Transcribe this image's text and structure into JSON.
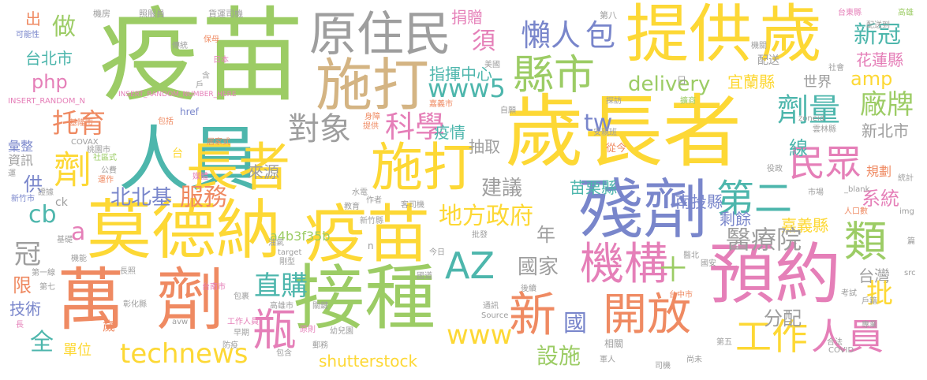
{
  "words": [
    {
      "text": "疫苗",
      "color": "#9ccc65"
    },
    {
      "text": "歲長者",
      "color": "#fdd835"
    },
    {
      "text": "人員",
      "color": "#4db6ac"
    },
    {
      "text": "提供",
      "color": "#fdd835"
    },
    {
      "text": "歲",
      "color": "#fdd835"
    },
    {
      "text": "原住民",
      "color": "#9e9e9e"
    },
    {
      "text": "施打",
      "color": "#d4b483"
    },
    {
      "text": "莫德納",
      "color": "#fdd835"
    },
    {
      "text": "疫苗",
      "color": "#fdd835"
    },
    {
      "text": "萬",
      "color": "#ef8a62"
    },
    {
      "text": "劑",
      "color": "#ef8a62"
    },
    {
      "text": "接種",
      "color": "#9ccc65"
    },
    {
      "text": "殘劑",
      "color": "#7986cb"
    },
    {
      "text": "預約",
      "color": "#e57fb8"
    },
    {
      "text": "長者",
      "color": "#fdd835"
    },
    {
      "text": "施打",
      "color": "#fdd835"
    },
    {
      "text": "AZ",
      "color": "#4db6ac"
    },
    {
      "text": "縣市",
      "color": "#9ccc65"
    },
    {
      "text": "懶人",
      "color": "#7986cb"
    },
    {
      "text": "包",
      "color": "#7986cb"
    },
    {
      "text": "機構",
      "color": "#e57fb8"
    },
    {
      "text": "開放",
      "color": "#ef8a62"
    },
    {
      "text": "新",
      "color": "#ef8a62"
    },
    {
      "text": "瓶",
      "color": "#e57fb8"
    },
    {
      "text": "第二",
      "color": "#4db6ac"
    },
    {
      "text": "類",
      "color": "#9ccc65"
    },
    {
      "text": "民眾",
      "color": "#e57fb8"
    },
    {
      "text": "劑量",
      "color": "#4db6ac"
    },
    {
      "text": "工作",
      "color": "#fdd835"
    },
    {
      "text": "人員",
      "color": "#e57fb8"
    },
    {
      "text": "technews",
      "color": "#fdd835"
    },
    {
      "text": "www",
      "color": "#fdd835"
    },
    {
      "text": "設施",
      "color": "#9ccc65"
    },
    {
      "text": "shutterstock",
      "color": "#fdd835"
    },
    {
      "text": "地方政府",
      "color": "#fdd835"
    },
    {
      "text": "直購",
      "color": "#4db6ac"
    },
    {
      "text": "托育",
      "color": "#ef8a62"
    },
    {
      "text": "劑",
      "color": "#fdd835"
    },
    {
      "text": "對象",
      "color": "#9e9e9e"
    },
    {
      "text": "科學",
      "color": "#e57fb8"
    },
    {
      "text": "www5",
      "color": "#4db6ac"
    },
    {
      "text": "delivery",
      "color": "#9ccc65"
    },
    {
      "text": "新冠",
      "color": "#4db6ac"
    },
    {
      "text": "花蓮縣",
      "color": "#e57fb8"
    },
    {
      "text": "amp",
      "color": "#fdd835"
    },
    {
      "text": "廠牌",
      "color": "#9ccc65"
    },
    {
      "text": "宜蘭縣",
      "color": "#fdd835"
    },
    {
      "text": "世界",
      "color": "#9e9e9e"
    },
    {
      "text": "新北市",
      "color": "#9e9e9e"
    },
    {
      "text": "系統",
      "color": "#e57fb8"
    },
    {
      "text": "嘉義縣",
      "color": "#fdd835"
    },
    {
      "text": "醫療院",
      "color": "#9e9e9e"
    },
    {
      "text": "剩餘",
      "color": "#7986cb"
    },
    {
      "text": "十",
      "color": "#9ccc65"
    },
    {
      "text": "國家",
      "color": "#9e9e9e"
    },
    {
      "text": "台灣",
      "color": "#9e9e9e"
    },
    {
      "text": "批",
      "color": "#fdd835"
    },
    {
      "text": "分配",
      "color": "#9e9e9e"
    },
    {
      "text": "國",
      "color": "#7986cb"
    },
    {
      "text": "北北基",
      "color": "#7986cb"
    },
    {
      "text": "服務",
      "color": "#ef8a62"
    },
    {
      "text": "建議",
      "color": "#9e9e9e"
    },
    {
      "text": "苗栗縣",
      "color": "#4db6ac"
    },
    {
      "text": "南投縣",
      "color": "#7986cb"
    },
    {
      "text": "線",
      "color": "#4db6ac"
    },
    {
      "text": "來源",
      "color": "#9e9e9e"
    },
    {
      "text": "疫情",
      "color": "#4db6ac"
    },
    {
      "text": "抽取",
      "color": "#9e9e9e"
    },
    {
      "text": "指揮中心",
      "color": "#4db6ac"
    },
    {
      "text": "須",
      "color": "#e57fb8"
    },
    {
      "text": "捐贈",
      "color": "#e57fb8"
    },
    {
      "text": "tw",
      "color": "#7986cb"
    },
    {
      "text": "年",
      "color": "#9e9e9e"
    },
    {
      "text": "a4b3f35b",
      "color": "#9ccc65"
    },
    {
      "text": "做",
      "color": "#9ccc65"
    },
    {
      "text": "出",
      "color": "#ef8a62"
    },
    {
      "text": "台北市",
      "color": "#4db6ac"
    },
    {
      "text": "php",
      "color": "#e57fb8"
    },
    {
      "text": "冠",
      "color": "#9e9e9e"
    },
    {
      "text": "a",
      "color": "#e57fb8"
    },
    {
      "text": "cb",
      "color": "#4db6ac"
    },
    {
      "text": "限",
      "color": "#ef8a62"
    },
    {
      "text": "技術",
      "color": "#7986cb"
    },
    {
      "text": "全",
      "color": "#4db6ac"
    },
    {
      "text": "單位",
      "color": "#fdd835"
    },
    {
      "text": "供",
      "color": "#7986cb"
    },
    {
      "text": "資訊",
      "color": "#9e9e9e"
    },
    {
      "text": "彙整",
      "color": "#7986cb"
    },
    {
      "text": "歲",
      "color": "#ef8a62"
    },
    {
      "text": "規劃",
      "color": "#ef8a62"
    },
    {
      "text": "配送",
      "color": "#9e9e9e"
    },
    {
      "text": "機房",
      "color": "#9e9e9e"
    },
    {
      "text": "照服員",
      "color": "#9e9e9e"
    },
    {
      "text": "貨運司機",
      "color": "#9e9e9e"
    },
    {
      "text": "第八",
      "color": "#9e9e9e"
    },
    {
      "text": "台東縣",
      "color": "#e57fb8"
    },
    {
      "text": "高雄",
      "color": "#9ccc65"
    },
    {
      "text": "配送到",
      "color": "#9e9e9e"
    },
    {
      "text": "可能性",
      "color": "#7986cb"
    },
    {
      "text": "傳統",
      "color": "#9e9e9e"
    },
    {
      "text": "保母",
      "color": "#ef8a62"
    },
    {
      "text": "日本",
      "color": "#e57fb8"
    },
    {
      "text": "美國",
      "color": "#9e9e9e"
    },
    {
      "text": "機關",
      "color": "#9e9e9e"
    },
    {
      "text": "社會",
      "color": "#9e9e9e"
    },
    {
      "text": "INSERT_RANDOM_N",
      "color": "#e57fb8"
    },
    {
      "text": "INSERT_RANDOM_NUMBER_HERE",
      "color": "#e57fb8"
    },
    {
      "text": "href",
      "color": "#7986cb"
    },
    {
      "text": "嘉義市",
      "color": "#ef8a62"
    },
    {
      "text": "自願",
      "color": "#9e9e9e"
    },
    {
      "text": "探訪",
      "color": "#9e9e9e"
    },
    {
      "text": "擴商",
      "color": "#9ccc65"
    },
    {
      "text": "安親班",
      "color": "#9e9e9e"
    },
    {
      "text": "從今",
      "color": "#ef8a62"
    },
    {
      "text": "zoneid",
      "color": "#9e9e9e"
    },
    {
      "text": "雲林縣",
      "color": "#9e9e9e"
    },
    {
      "text": "役政",
      "color": "#9e9e9e"
    },
    {
      "text": "統計",
      "color": "#9e9e9e"
    },
    {
      "text": "市場",
      "color": "#9e9e9e"
    },
    {
      "text": "_blank",
      "color": "#9e9e9e"
    },
    {
      "text": "人口數",
      "color": "#ef8a62"
    },
    {
      "text": "基隆市",
      "color": "#ef8a62"
    },
    {
      "text": "包括",
      "color": "#ef8a62"
    },
    {
      "text": "居家式",
      "color": "#ef8a62"
    },
    {
      "text": "提供",
      "color": "#ef8a62"
    },
    {
      "text": "身障",
      "color": "#ef8a62"
    },
    {
      "text": "COVAX",
      "color": "#9e9e9e"
    },
    {
      "text": "桃園市",
      "color": "#9e9e9e"
    },
    {
      "text": "社區式",
      "color": "#9ccc65"
    },
    {
      "text": "台",
      "color": "#fdd835"
    },
    {
      "text": "公費",
      "color": "#9e9e9e"
    },
    {
      "text": "媒體",
      "color": "#e57fb8"
    },
    {
      "text": "運作",
      "color": "#ef8a62"
    },
    {
      "text": "新竹市",
      "color": "#7986cb"
    },
    {
      "text": "證據",
      "color": "#9e9e9e"
    },
    {
      "text": "ck",
      "color": "#9e9e9e"
    },
    {
      "text": "水電",
      "color": "#9e9e9e"
    },
    {
      "text": "教育",
      "color": "#9e9e9e"
    },
    {
      "text": "作者",
      "color": "#9e9e9e"
    },
    {
      "text": "客司機",
      "color": "#9e9e9e"
    },
    {
      "text": "新竹縣",
      "color": "#9e9e9e"
    },
    {
      "text": "基礎",
      "color": "#9e9e9e"
    },
    {
      "text": "機能",
      "color": "#9e9e9e"
    },
    {
      "text": "油氣",
      "color": "#9e9e9e"
    },
    {
      "text": "target",
      "color": "#9e9e9e"
    },
    {
      "text": "剛型",
      "color": "#9e9e9e"
    },
    {
      "text": "批發",
      "color": "#9e9e9e"
    },
    {
      "text": "今日",
      "color": "#9e9e9e"
    },
    {
      "text": "第一線",
      "color": "#9e9e9e"
    },
    {
      "text": "第七",
      "color": "#9e9e9e"
    },
    {
      "text": "長照",
      "color": "#9e9e9e"
    },
    {
      "text": "台南市",
      "color": "#e57fb8"
    },
    {
      "text": "國道",
      "color": "#9e9e9e"
    },
    {
      "text": "後續",
      "color": "#9e9e9e"
    },
    {
      "text": "醫北",
      "color": "#9e9e9e"
    },
    {
      "text": "國安",
      "color": "#9e9e9e"
    },
    {
      "text": "src",
      "color": "#9e9e9e"
    },
    {
      "text": "台中市",
      "color": "#ef8a62"
    },
    {
      "text": "戶籍",
      "color": "#9e9e9e"
    },
    {
      "text": "包裹",
      "color": "#9e9e9e"
    },
    {
      "text": "高雄市",
      "color": "#9e9e9e"
    },
    {
      "text": "關鍵",
      "color": "#9e9e9e"
    },
    {
      "text": "通訊",
      "color": "#9e9e9e"
    },
    {
      "text": "考試",
      "color": "#9e9e9e"
    },
    {
      "text": "彰化縣",
      "color": "#9e9e9e"
    },
    {
      "text": "工作人員",
      "color": "#e57fb8"
    },
    {
      "text": "幼兒園",
      "color": "#9e9e9e"
    },
    {
      "text": "原則",
      "color": "#e57fb8"
    },
    {
      "text": "Source",
      "color": "#9e9e9e"
    },
    {
      "text": "專業",
      "color": "#9e9e9e"
    },
    {
      "text": "avw",
      "color": "#9e9e9e"
    },
    {
      "text": "早期",
      "color": "#9e9e9e"
    },
    {
      "text": "防疫",
      "color": "#9e9e9e"
    },
    {
      "text": "包含",
      "color": "#9e9e9e"
    },
    {
      "text": "郵務",
      "color": "#9e9e9e"
    },
    {
      "text": "第五",
      "color": "#9e9e9e"
    },
    {
      "text": "軍人",
      "color": "#9e9e9e"
    },
    {
      "text": "相關",
      "color": "#9e9e9e"
    },
    {
      "text": "司機",
      "color": "#9e9e9e"
    },
    {
      "text": "尚未",
      "color": "#9e9e9e"
    },
    {
      "text": "COVID",
      "color": "#9e9e9e"
    },
    {
      "text": "合法",
      "color": "#9e9e9e"
    },
    {
      "text": "長",
      "color": "#e57fb8"
    },
    {
      "text": "img",
      "color": "#9e9e9e"
    },
    {
      "text": "篇",
      "color": "#9e9e9e"
    },
    {
      "text": "運",
      "color": "#9e9e9e"
    },
    {
      "text": "n",
      "color": "#9e9e9e"
    },
    {
      "text": "日",
      "color": "#9e9e9e"
    },
    {
      "text": "戶",
      "color": "#9e9e9e"
    },
    {
      "text": "含",
      "color": "#9e9e9e"
    }
  ]
}
